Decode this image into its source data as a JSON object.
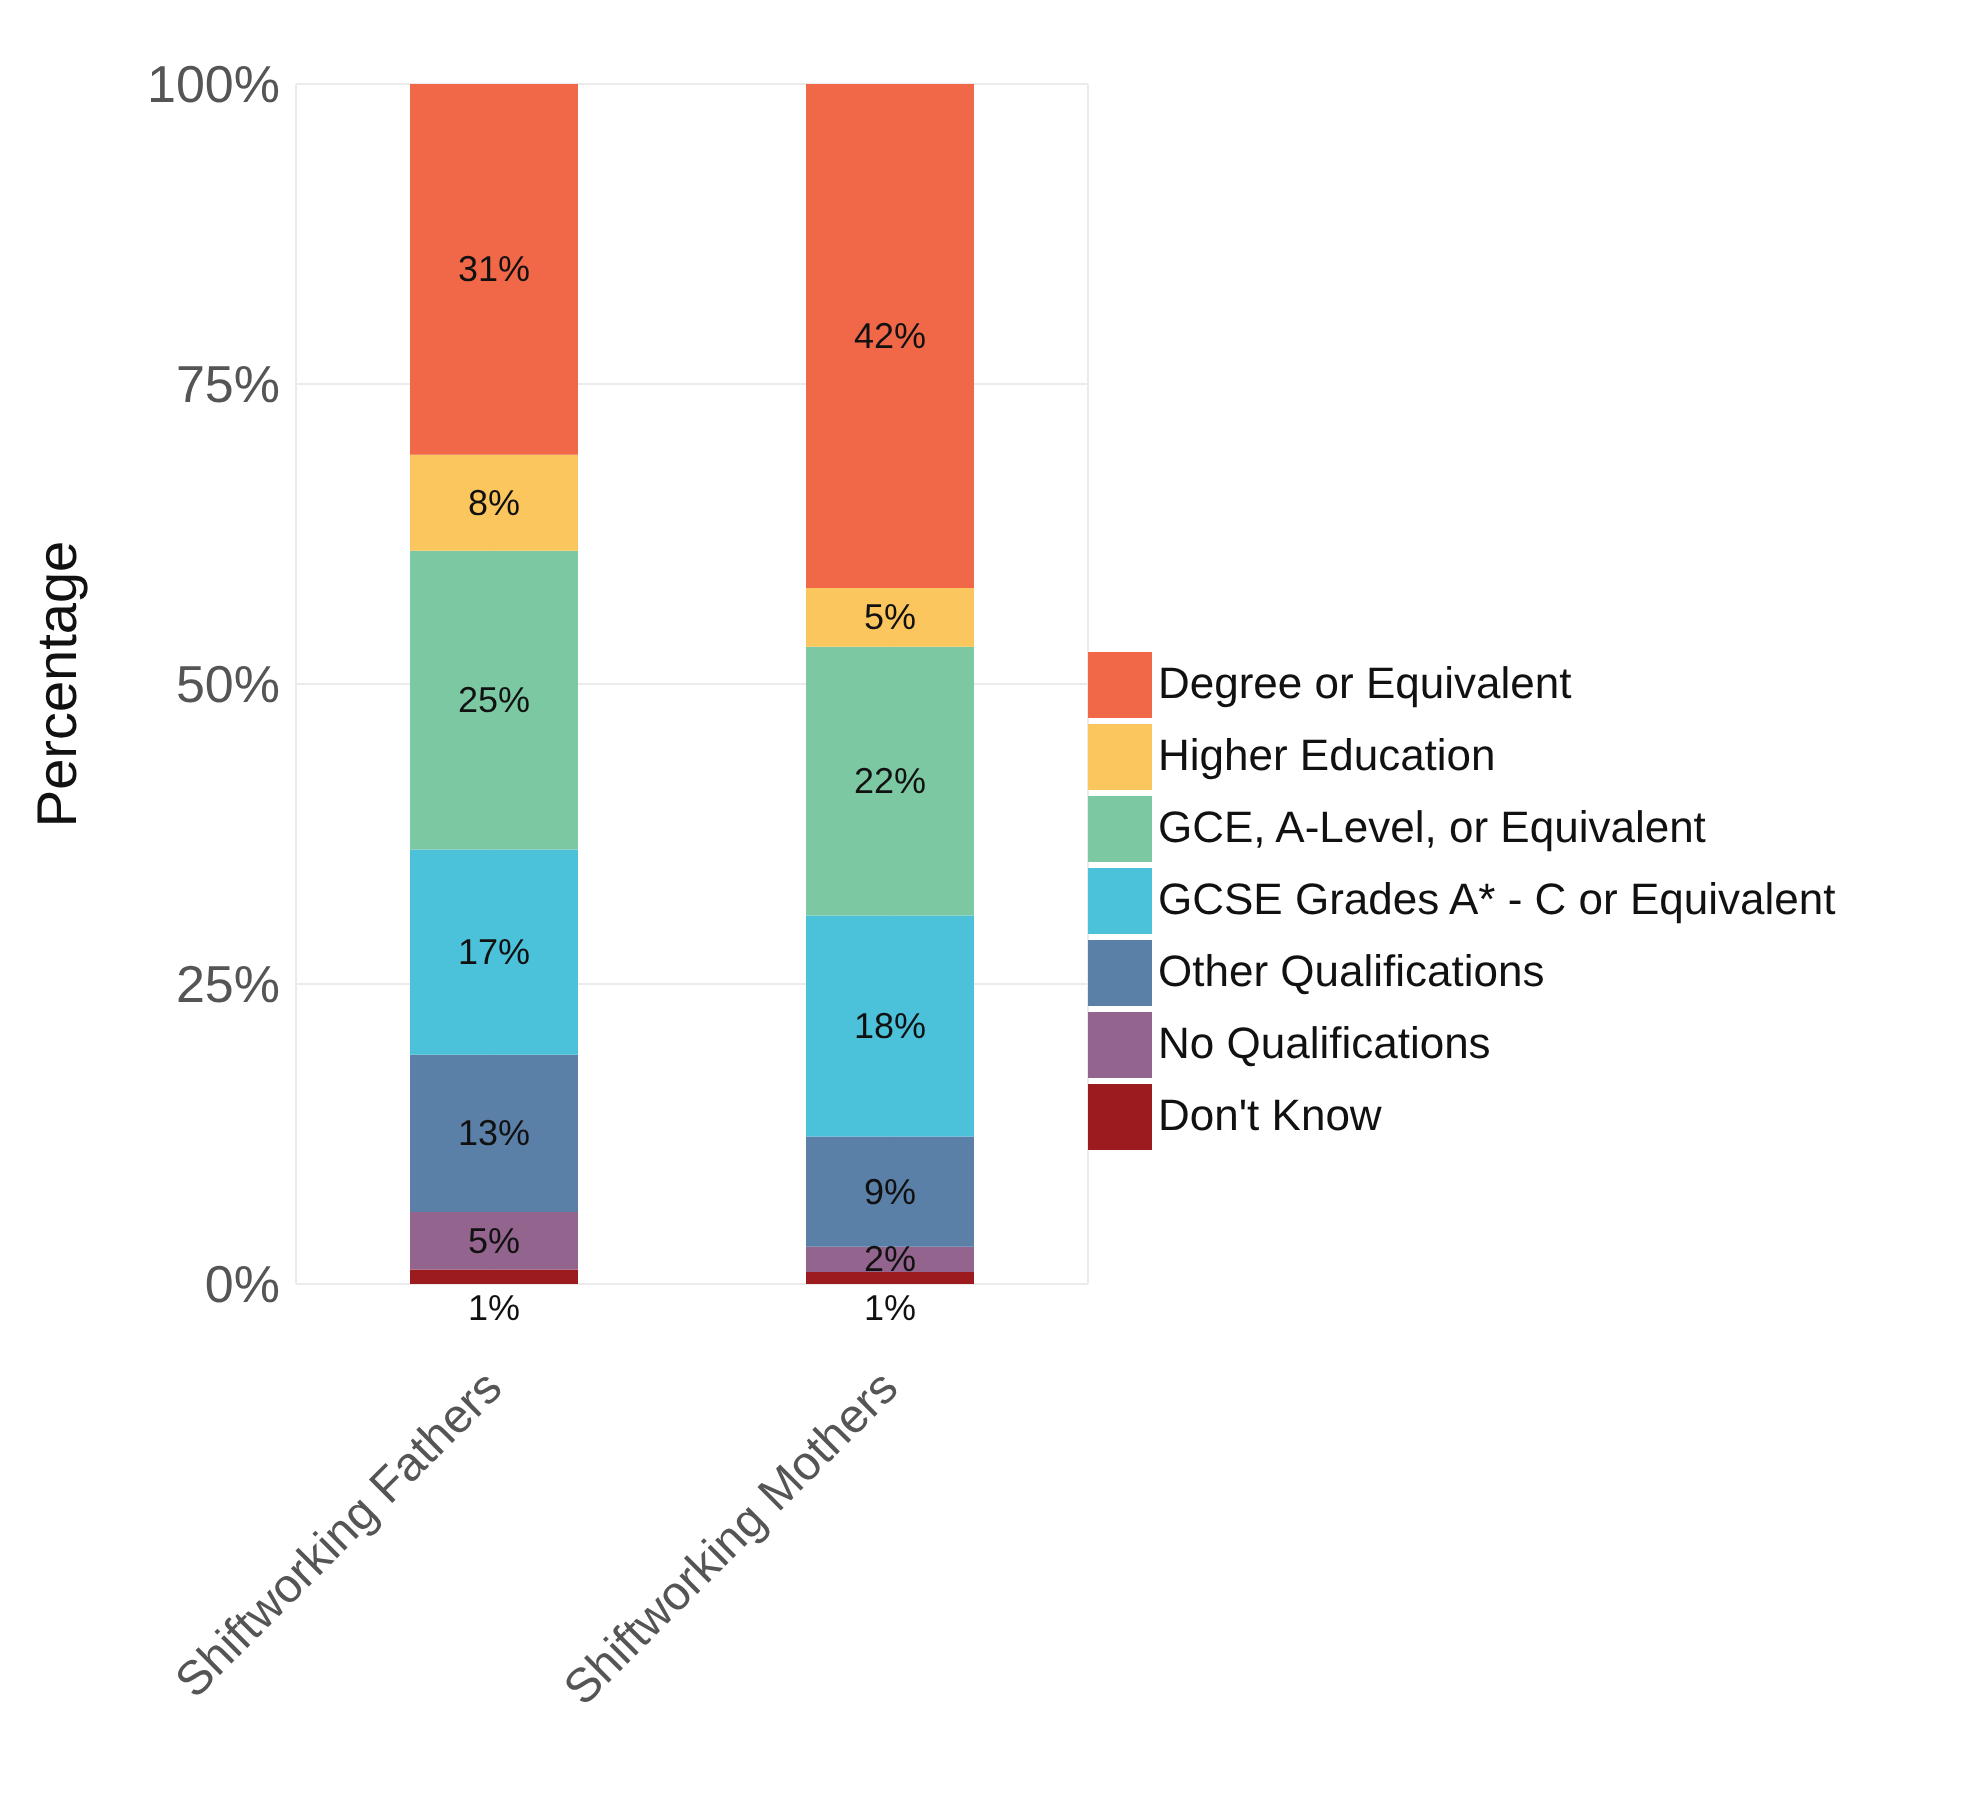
{
  "chart_data": {
    "type": "bar",
    "stacked": true,
    "ylabel": "Percentage",
    "categories": [
      "Shiftworking Fathers",
      "Shiftworking Mothers"
    ],
    "series": [
      {
        "name": "Don't Know",
        "color": "#9b1b1f",
        "values": [
          1.2,
          1.0
        ],
        "value_labels": [
          "1%",
          "1%"
        ]
      },
      {
        "name": "No Qualifications",
        "color": "#93648d",
        "values": [
          4.8,
          2.1
        ],
        "value_labels": [
          "5%",
          "2%"
        ]
      },
      {
        "name": "Other Qualifications",
        "color": "#5b80a8",
        "values": [
          13.1,
          9.2
        ],
        "value_labels": [
          "13%",
          "9%"
        ]
      },
      {
        "name": "GCSE Grades A* - C or Equivalent",
        "color": "#4bc2da",
        "values": [
          17.1,
          18.4
        ],
        "value_labels": [
          "17%",
          "18%"
        ]
      },
      {
        "name": "GCE, A-Level, or Equivalent",
        "color": "#7cc8a3",
        "values": [
          24.9,
          22.4
        ],
        "value_labels": [
          "25%",
          "22%"
        ]
      },
      {
        "name": "Higher Education",
        "color": "#fcc65e",
        "values": [
          8.0,
          4.9
        ],
        "value_labels": [
          "8%",
          "5%"
        ]
      },
      {
        "name": "Degree or Equivalent",
        "color": "#f16848",
        "values": [
          30.9,
          42.0
        ],
        "value_labels": [
          "31%",
          "42%"
        ]
      }
    ],
    "ylim": [
      0,
      100
    ],
    "yticks": [
      {
        "value": 0,
        "label": "0%"
      },
      {
        "value": 25,
        "label": "25%"
      },
      {
        "value": 50,
        "label": "50%"
      },
      {
        "value": 75,
        "label": "75%"
      },
      {
        "value": 100,
        "label": "100%"
      }
    ],
    "grid": true,
    "legend": "right"
  }
}
